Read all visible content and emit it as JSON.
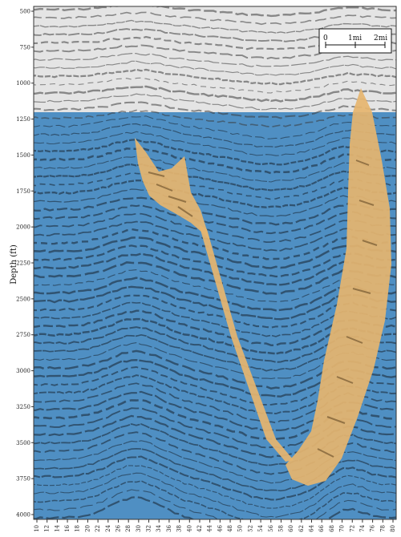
{
  "figure": {
    "y_axis_label": "Depth (ft)",
    "y_tick_labels": [
      "500",
      "750",
      "1000",
      "1250",
      "1500",
      "1750",
      "2000",
      "2250",
      "2500",
      "2750",
      "3000",
      "3250",
      "3500",
      "3750",
      "4000"
    ],
    "x_tick_labels": [
      "10",
      "12",
      "14",
      "16",
      "18",
      "20",
      "22",
      "24",
      "26",
      "28",
      "30",
      "32",
      "34",
      "36",
      "38",
      "40",
      "42",
      "44",
      "46",
      "48",
      "50",
      "52",
      "54",
      "56",
      "58",
      "60",
      "62",
      "64",
      "66",
      "68",
      "70",
      "72",
      "74",
      "76",
      "78",
      "80"
    ],
    "scale_bar": {
      "labels": [
        "0",
        "1mi",
        "2mi"
      ]
    },
    "colors": {
      "water_layer": "#e6e6e6",
      "sediment": "#4f8fc3",
      "salt_body": "#e6b56f",
      "reflector": "#1c2c3a"
    }
  }
}
